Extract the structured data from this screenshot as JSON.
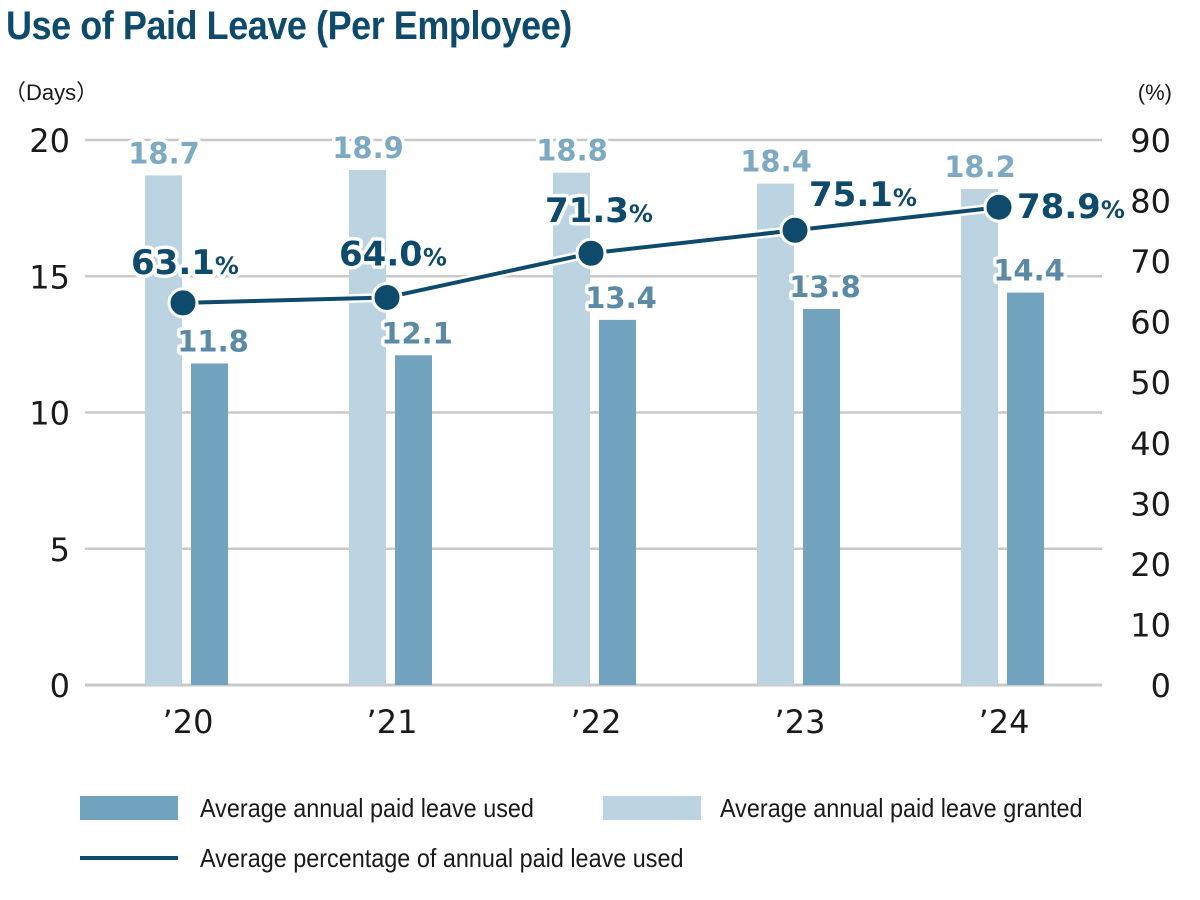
{
  "title": "Use of Paid Leave (Per Employee)",
  "colors": {
    "title": "#0d4a6b",
    "granted": "#bcd3e1",
    "used": "#72a3be",
    "line": "#0d4a6b",
    "granted_label": "#7ea9c3",
    "used_label": "#5a8aa6",
    "grid": "#c8c8c8",
    "axis_text": "#1a1a1a"
  },
  "chart_data": {
    "type": "bar",
    "title": "Use of Paid Leave (Per Employee)",
    "categories": [
      "’20",
      "’21",
      "’22",
      "’23",
      "’24"
    ],
    "series": [
      {
        "name": "Average annual paid leave granted",
        "type": "bar",
        "axis": "left",
        "values": [
          18.7,
          18.9,
          18.8,
          18.4,
          18.2
        ],
        "labels": [
          "18.7",
          "18.9",
          "18.8",
          "18.4",
          "18.2"
        ]
      },
      {
        "name": "Average annual paid leave used",
        "type": "bar",
        "axis": "left",
        "values": [
          11.8,
          12.1,
          13.4,
          13.8,
          14.4
        ],
        "labels": [
          "11.8",
          "12.1",
          "13.4",
          "13.8",
          "14.4"
        ]
      },
      {
        "name": "Average percentage of annual paid leave used",
        "type": "line",
        "axis": "right",
        "values": [
          63.1,
          64.0,
          71.3,
          75.1,
          78.9
        ],
        "labels": [
          "63.1",
          "64.0",
          "71.3",
          "75.1",
          "78.9"
        ],
        "label_suffix": "%"
      }
    ],
    "left_axis": {
      "label": "（Days）",
      "range": [
        0,
        20
      ],
      "ticks": [
        "0",
        "5",
        "10",
        "15",
        "20"
      ],
      "tick_values": [
        0,
        5,
        10,
        15,
        20
      ]
    },
    "right_axis": {
      "label": "(%)",
      "range": [
        0,
        90
      ],
      "ticks": [
        "0",
        "10",
        "20",
        "30",
        "40",
        "50",
        "60",
        "70",
        "80",
        "90"
      ],
      "tick_values": [
        0,
        10,
        20,
        30,
        40,
        50,
        60,
        70,
        80,
        90
      ]
    },
    "grid": true,
    "legend_position": "bottom"
  },
  "legend": {
    "used": "Average annual paid leave used",
    "granted": "Average annual paid leave granted",
    "line": "Average percentage of annual paid leave used"
  }
}
